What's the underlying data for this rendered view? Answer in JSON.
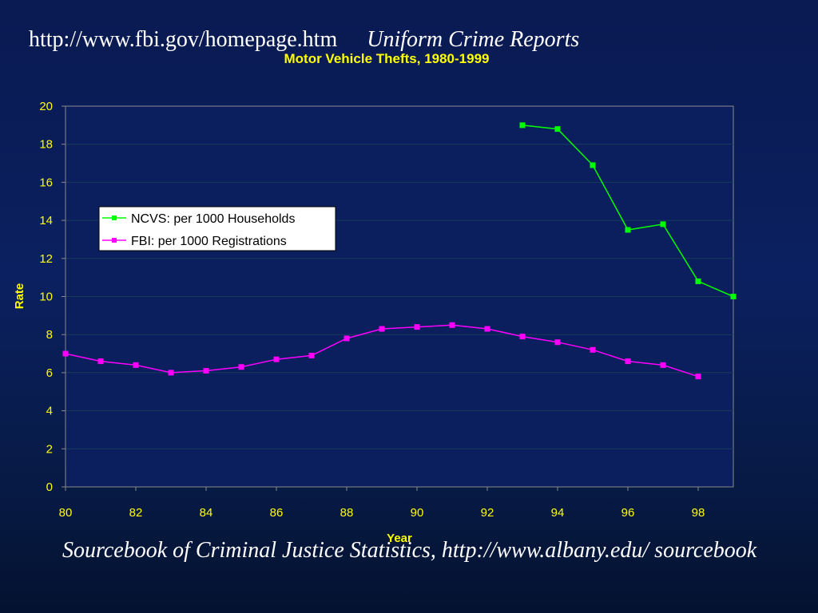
{
  "header": {
    "url": "http://www.fbi.gov/homepage.htm",
    "source": "Uniform Crime Reports"
  },
  "footer": {
    "text": "Sourcebook of Criminal Justice Statistics, http://www.albany.edu/ sourcebook"
  },
  "chart_data": {
    "type": "line",
    "title": "Motor Vehicle Thefts, 1980-1999",
    "xlabel": "Year",
    "ylabel": "Rate",
    "xlim": [
      80,
      99
    ],
    "ylim": [
      0,
      20
    ],
    "x_ticks": [
      80,
      82,
      84,
      86,
      88,
      90,
      92,
      94,
      96,
      98
    ],
    "y_ticks": [
      0,
      2,
      4,
      6,
      8,
      10,
      12,
      14,
      16,
      18,
      20
    ],
    "grid": "horizontal",
    "legend_position": "upper-left",
    "series": [
      {
        "name": "NCVS: per 1000 Households",
        "color": "#00ff00",
        "x": [
          93,
          94,
          95,
          96,
          97,
          98,
          99
        ],
        "values": [
          19.0,
          18.8,
          16.9,
          13.5,
          13.8,
          10.8,
          10.0
        ]
      },
      {
        "name": "FBI: per 1000 Registrations",
        "color": "#ff00ff",
        "x": [
          80,
          81,
          82,
          83,
          84,
          85,
          86,
          87,
          88,
          89,
          90,
          91,
          92,
          93,
          94,
          95,
          96,
          97,
          98
        ],
        "values": [
          7.0,
          6.6,
          6.4,
          6.0,
          6.1,
          6.3,
          6.7,
          6.9,
          7.8,
          8.3,
          8.4,
          8.5,
          8.3,
          7.9,
          7.6,
          7.2,
          6.6,
          6.4,
          5.8
        ]
      }
    ],
    "plot_background": "#0b1f5e",
    "axis_color": "#8a8a8a"
  }
}
